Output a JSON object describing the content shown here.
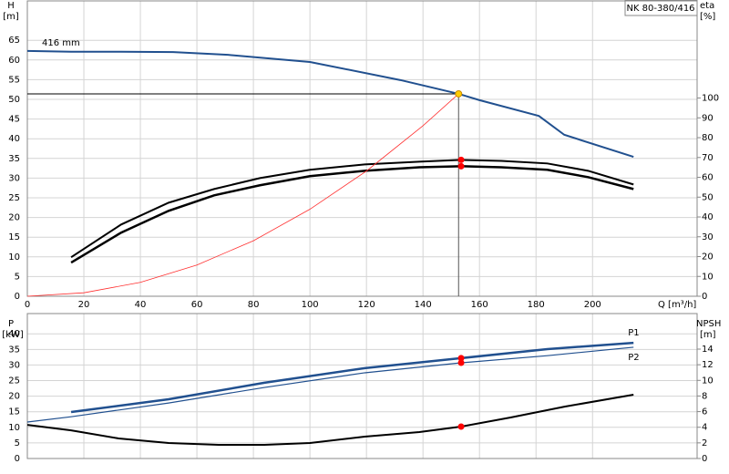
{
  "chart_data": [
    {
      "type": "line",
      "title": "NK 80-380/416",
      "y_label": "H",
      "y_unit": "[m]",
      "y2_label": "eta",
      "y2_unit": "[%]",
      "x_label": "Q [m³/h]",
      "xlim": [
        0,
        237
      ],
      "xticks": [
        0,
        20,
        40,
        60,
        80,
        100,
        120,
        140,
        160,
        180,
        200
      ],
      "ylim": [
        0,
        75
      ],
      "yticks": [
        0,
        5,
        10,
        15,
        20,
        25,
        30,
        35,
        40,
        45,
        50,
        55,
        60,
        65
      ],
      "y2lim": [
        0,
        149
      ],
      "y2ticks": [
        0,
        10,
        20,
        30,
        40,
        50,
        60,
        70,
        80,
        90,
        100
      ],
      "grid": true,
      "series": [
        {
          "name": "416 mm",
          "color": "#21508f",
          "width": 2,
          "x": [
            0,
            15.5,
            33.2,
            51.6,
            71,
            100,
            132,
            152.6,
            160,
            181,
            190,
            214.5
          ],
          "values": [
            62.3,
            62.1,
            62.1,
            62,
            61.3,
            59.5,
            54.9,
            51.4,
            49.8,
            45.8,
            41,
            35.4
          ]
        },
        {
          "color": "#000000",
          "width": 2,
          "axis": "y2",
          "x": [
            15.5,
            33.2,
            50,
            66.1,
            82.3,
            100,
            119.4,
            138.7,
            153.5,
            167.7,
            184,
            198.4,
            214.5
          ],
          "values": [
            19.7,
            36.2,
            47.2,
            54.1,
            59.6,
            63.8,
            66.5,
            67.9,
            68.8,
            68.3,
            67,
            63.3,
            56.4
          ]
        },
        {
          "color": "#000000",
          "width": 2.5,
          "axis": "y2",
          "x": [
            15.5,
            33.2,
            50,
            66.1,
            82.3,
            100,
            119.4,
            138.7,
            153.5,
            167.7,
            184,
            198.4,
            214.5
          ],
          "values": [
            17,
            32.1,
            43.1,
            50.9,
            56,
            60.6,
            63.3,
            65.1,
            65.6,
            65.1,
            63.8,
            60.1,
            54.1
          ]
        },
        {
          "color": "#ff3030",
          "width": 0.8,
          "x": [
            0,
            20,
            40,
            60,
            80,
            100,
            120,
            140,
            152.6
          ],
          "values": [
            0,
            0.88,
            3.53,
            7.94,
            14.1,
            22.1,
            31.8,
            43.3,
            51.4
          ]
        }
      ],
      "points": [
        {
          "x": 152.6,
          "y": 51.4,
          "color": "#ffcc00"
        },
        {
          "x": 153.5,
          "y": 68.8,
          "color": "#ff0000",
          "axis": "y2"
        },
        {
          "x": 153.5,
          "y": 65.6,
          "color": "#ff0000",
          "axis": "y2"
        }
      ]
    },
    {
      "type": "line",
      "y_label": "P",
      "y_unit": "[kW]",
      "y2_label": "NPSH",
      "y2_unit": "[m]",
      "xlim": [
        0,
        237
      ],
      "ylim": [
        0,
        46.5
      ],
      "yticks": [
        0,
        5,
        10,
        15,
        20,
        25,
        30,
        35,
        40
      ],
      "y2lim": [
        0,
        18.55
      ],
      "y2ticks": [
        0,
        2,
        4,
        6,
        8,
        10,
        12,
        14
      ],
      "grid": true,
      "series": [
        {
          "name": "P1",
          "color": "#21508f",
          "width": 2.5,
          "x": [
            15.5,
            50,
            83.9,
            119.4,
            153.5,
            184,
            214.5
          ],
          "values": [
            14.9,
            19,
            24.3,
            29,
            32.2,
            35.1,
            37.1
          ]
        },
        {
          "name": "P2",
          "color": "#21508f",
          "width": 1.2,
          "x": [
            0,
            15.5,
            50,
            83.9,
            119.4,
            153.5,
            184,
            214.5
          ],
          "values": [
            11.7,
            13.4,
            17.8,
            22.8,
            27.5,
            30.7,
            33,
            35.7
          ]
        },
        {
          "color": "#000000",
          "width": 2,
          "axis": "y2",
          "x": [
            0,
            15.5,
            32.3,
            50,
            67.7,
            83.9,
            100,
            119.4,
            138.7,
            153.5,
            171,
            190.3,
            214.5
          ],
          "values": [
            4.3,
            3.6,
            2.57,
            1.98,
            1.75,
            1.75,
            1.98,
            2.8,
            3.38,
            4.08,
            5.25,
            6.65,
            8.17
          ]
        }
      ],
      "points": [
        {
          "x": 153.5,
          "y": 32.2,
          "color": "#ff0000"
        },
        {
          "x": 153.5,
          "y": 30.7,
          "color": "#ff0000"
        },
        {
          "x": 153.5,
          "y": 4.08,
          "color": "#ff0000",
          "axis": "y2"
        }
      ]
    }
  ]
}
